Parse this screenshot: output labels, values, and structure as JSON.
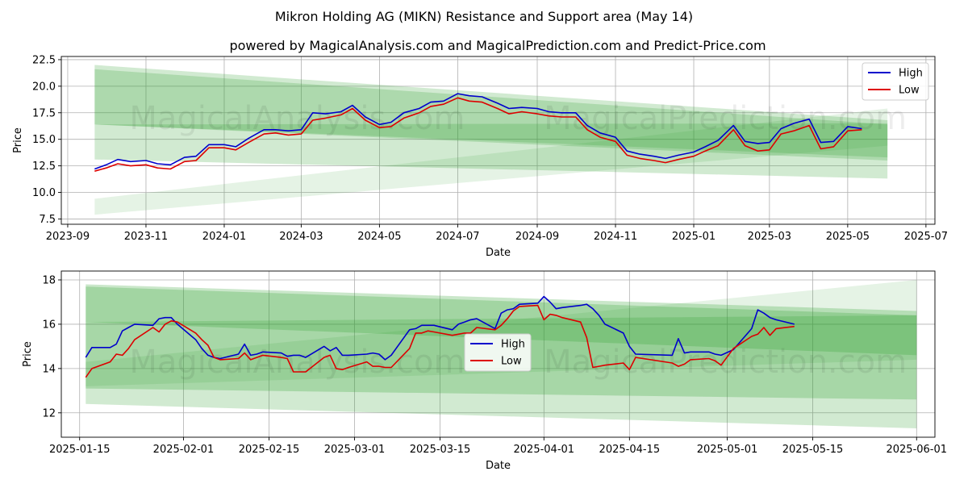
{
  "title": "Mikron Holding AG (MIKN) Resistance and Support area (May 14)",
  "subtitle": "powered by MagicalAnalysis.com and MagicalPrediction.com and Predict-Price.com",
  "watermark": {
    "left": "MagicalAnalysis.com",
    "right": "MagicalPrediction.com"
  },
  "colors": {
    "high": "#0000cc",
    "low": "#dd0000",
    "band": "#2ca02c",
    "grid": "#b0b0b0"
  },
  "chart_data": [
    {
      "type": "line",
      "xlabel": "Date",
      "ylabel": "Price",
      "xlim": [
        "2023-08-27",
        "2025-07-08"
      ],
      "ylim": [
        7.0,
        22.8
      ],
      "grid": true,
      "legend": "top-right",
      "x_ticks": [
        "2023-09",
        "2023-11",
        "2024-01",
        "2024-03",
        "2024-05",
        "2024-07",
        "2024-09",
        "2024-11",
        "2025-01",
        "2025-03",
        "2025-05",
        "2025-07"
      ],
      "y_ticks": [
        7.5,
        10.0,
        12.5,
        15.0,
        17.5,
        20.0,
        22.5
      ],
      "bands": [
        {
          "x": [
            "2023-09-22",
            "2025-06-01"
          ],
          "upper": [
            22.0,
            16.8
          ],
          "lower": [
            16.4,
            13.0
          ],
          "opacity": 0.22
        },
        {
          "x": [
            "2023-09-22",
            "2025-06-01"
          ],
          "upper": [
            21.6,
            16.4
          ],
          "lower": [
            16.4,
            13.3
          ],
          "opacity": 0.22
        },
        {
          "x": [
            "2023-09-22",
            "2025-06-01"
          ],
          "upper": [
            16.4,
            16.5
          ],
          "lower": [
            13.1,
            11.3
          ],
          "opacity": 0.22
        },
        {
          "x": [
            "2023-09-22",
            "2025-06-01"
          ],
          "upper": [
            9.4,
            17.9
          ],
          "lower": [
            7.9,
            14.4
          ],
          "opacity": 0.12
        }
      ],
      "series": [
        {
          "name": "High",
          "x": [
            "2023-09-22",
            "2023-10-01",
            "2023-10-10",
            "2023-10-20",
            "2023-11-01",
            "2023-11-10",
            "2023-11-20",
            "2023-12-01",
            "2023-12-10",
            "2023-12-20",
            "2024-01-01",
            "2024-01-10",
            "2024-01-20",
            "2024-02-01",
            "2024-02-10",
            "2024-02-20",
            "2024-03-01",
            "2024-03-10",
            "2024-03-20",
            "2024-04-01",
            "2024-04-10",
            "2024-04-20",
            "2024-05-01",
            "2024-05-10",
            "2024-05-20",
            "2024-06-01",
            "2024-06-10",
            "2024-06-20",
            "2024-07-01",
            "2024-07-10",
            "2024-07-20",
            "2024-08-01",
            "2024-08-10",
            "2024-08-20",
            "2024-09-01",
            "2024-09-10",
            "2024-09-20",
            "2024-10-01",
            "2024-10-10",
            "2024-10-20",
            "2024-11-01",
            "2024-11-10",
            "2024-11-20",
            "2024-12-01",
            "2024-12-10",
            "2024-12-20",
            "2025-01-01",
            "2025-01-10",
            "2025-01-20",
            "2025-02-01",
            "2025-02-10",
            "2025-02-20",
            "2025-03-01",
            "2025-03-10",
            "2025-03-20",
            "2025-04-01",
            "2025-04-10",
            "2025-04-20",
            "2025-05-01",
            "2025-05-12"
          ],
          "values": [
            12.2,
            12.6,
            13.1,
            12.9,
            13.0,
            12.7,
            12.6,
            13.3,
            13.4,
            14.5,
            14.5,
            14.3,
            15.1,
            15.9,
            15.9,
            15.8,
            15.9,
            17.5,
            17.4,
            17.6,
            18.2,
            17.1,
            16.4,
            16.6,
            17.5,
            17.9,
            18.5,
            18.6,
            19.3,
            19.1,
            19.0,
            18.4,
            17.9,
            18.0,
            17.9,
            17.6,
            17.5,
            17.5,
            16.3,
            15.6,
            15.2,
            13.9,
            13.6,
            13.4,
            13.2,
            13.5,
            13.8,
            14.3,
            14.9,
            16.3,
            14.8,
            14.6,
            14.7,
            16.0,
            16.5,
            16.9,
            14.7,
            14.8,
            16.2,
            16.0
          ]
        },
        {
          "name": "Low",
          "x": [
            "2023-09-22",
            "2023-10-01",
            "2023-10-10",
            "2023-10-20",
            "2023-11-01",
            "2023-11-10",
            "2023-11-20",
            "2023-12-01",
            "2023-12-10",
            "2023-12-20",
            "2024-01-01",
            "2024-01-10",
            "2024-01-20",
            "2024-02-01",
            "2024-02-10",
            "2024-02-20",
            "2024-03-01",
            "2024-03-10",
            "2024-03-20",
            "2024-04-01",
            "2024-04-10",
            "2024-04-20",
            "2024-05-01",
            "2024-05-10",
            "2024-05-20",
            "2024-06-01",
            "2024-06-10",
            "2024-06-20",
            "2024-07-01",
            "2024-07-10",
            "2024-07-20",
            "2024-08-01",
            "2024-08-10",
            "2024-08-20",
            "2024-09-01",
            "2024-09-10",
            "2024-09-20",
            "2024-10-01",
            "2024-10-10",
            "2024-10-20",
            "2024-11-01",
            "2024-11-10",
            "2024-11-20",
            "2024-12-01",
            "2024-12-10",
            "2024-12-20",
            "2025-01-01",
            "2025-01-10",
            "2025-01-20",
            "2025-02-01",
            "2025-02-10",
            "2025-02-20",
            "2025-03-01",
            "2025-03-10",
            "2025-03-20",
            "2025-04-01",
            "2025-04-10",
            "2025-04-20",
            "2025-05-01",
            "2025-05-12"
          ],
          "values": [
            12.0,
            12.3,
            12.7,
            12.5,
            12.6,
            12.3,
            12.2,
            12.9,
            13.0,
            14.2,
            14.2,
            14.0,
            14.7,
            15.5,
            15.6,
            15.4,
            15.5,
            16.8,
            17.0,
            17.3,
            17.9,
            16.8,
            16.1,
            16.2,
            17.0,
            17.5,
            18.1,
            18.3,
            18.9,
            18.6,
            18.5,
            17.9,
            17.4,
            17.6,
            17.4,
            17.2,
            17.1,
            17.1,
            15.9,
            15.2,
            14.8,
            13.5,
            13.2,
            13.0,
            12.8,
            13.1,
            13.4,
            13.9,
            14.4,
            15.9,
            14.4,
            13.9,
            14.0,
            15.5,
            15.8,
            16.3,
            14.1,
            14.3,
            15.8,
            15.9
          ]
        }
      ]
    },
    {
      "type": "line",
      "xlabel": "Date",
      "ylabel": "Price",
      "xlim": [
        "2025-01-12",
        "2025-06-04"
      ],
      "ylim": [
        10.9,
        18.4
      ],
      "grid": true,
      "legend": "center",
      "x_ticks": [
        "2025-01-15",
        "2025-02-01",
        "2025-02-15",
        "2025-03-01",
        "2025-03-15",
        "2025-04-01",
        "2025-04-15",
        "2025-05-01",
        "2025-05-15",
        "2025-06-01"
      ],
      "y_ticks": [
        12,
        14,
        16,
        18
      ],
      "bands": [
        {
          "x": [
            "2025-01-16",
            "2025-06-01"
          ],
          "upper": [
            17.8,
            16.6
          ],
          "lower": [
            16.1,
            14.6
          ],
          "opacity": 0.25
        },
        {
          "x": [
            "2025-01-16",
            "2025-06-01"
          ],
          "upper": [
            17.7,
            16.4
          ],
          "lower": [
            13.1,
            12.6
          ],
          "opacity": 0.25
        },
        {
          "x": [
            "2025-01-16",
            "2025-06-01"
          ],
          "upper": [
            16.1,
            16.4
          ],
          "lower": [
            12.4,
            11.3
          ],
          "opacity": 0.22
        },
        {
          "x": [
            "2025-01-16",
            "2025-06-01"
          ],
          "upper": [
            14.3,
            18.0
          ],
          "lower": [
            13.2,
            14.4
          ],
          "opacity": 0.12
        }
      ],
      "series": [
        {
          "name": "High",
          "x": [
            "2025-01-16",
            "2025-01-17",
            "2025-01-20",
            "2025-01-21",
            "2025-01-22",
            "2025-01-23",
            "2025-01-24",
            "2025-01-27",
            "2025-01-28",
            "2025-01-29",
            "2025-01-30",
            "2025-01-31",
            "2025-02-03",
            "2025-02-04",
            "2025-02-05",
            "2025-02-06",
            "2025-02-07",
            "2025-02-10",
            "2025-02-11",
            "2025-02-12",
            "2025-02-13",
            "2025-02-14",
            "2025-02-17",
            "2025-02-18",
            "2025-02-19",
            "2025-02-20",
            "2025-02-21",
            "2025-02-24",
            "2025-02-25",
            "2025-02-26",
            "2025-02-27",
            "2025-02-28",
            "2025-03-03",
            "2025-03-04",
            "2025-03-05",
            "2025-03-06",
            "2025-03-07",
            "2025-03-10",
            "2025-03-11",
            "2025-03-12",
            "2025-03-13",
            "2025-03-14",
            "2025-03-17",
            "2025-03-18",
            "2025-03-19",
            "2025-03-20",
            "2025-03-21",
            "2025-03-24",
            "2025-03-25",
            "2025-03-26",
            "2025-03-27",
            "2025-03-28",
            "2025-03-31",
            "2025-04-01",
            "2025-04-02",
            "2025-04-03",
            "2025-04-04",
            "2025-04-07",
            "2025-04-08",
            "2025-04-09",
            "2025-04-10",
            "2025-04-11",
            "2025-04-14",
            "2025-04-15",
            "2025-04-16",
            "2025-04-22",
            "2025-04-23",
            "2025-04-24",
            "2025-04-25",
            "2025-04-28",
            "2025-04-29",
            "2025-04-30",
            "2025-05-02",
            "2025-05-05",
            "2025-05-06",
            "2025-05-07",
            "2025-05-08",
            "2025-05-09",
            "2025-05-12"
          ],
          "values": [
            14.5,
            14.95,
            14.95,
            15.1,
            15.7,
            15.85,
            16.0,
            15.95,
            16.25,
            16.3,
            16.3,
            16.0,
            15.3,
            14.9,
            14.6,
            14.5,
            14.45,
            14.65,
            15.1,
            14.6,
            14.65,
            14.75,
            14.7,
            14.55,
            14.6,
            14.6,
            14.5,
            15.0,
            14.8,
            14.95,
            14.6,
            14.6,
            14.65,
            14.7,
            14.65,
            14.4,
            14.6,
            15.75,
            15.8,
            15.95,
            15.95,
            15.95,
            15.75,
            16.0,
            16.1,
            16.2,
            16.25,
            15.8,
            16.5,
            16.65,
            16.7,
            16.9,
            16.95,
            17.25,
            17.0,
            16.7,
            16.75,
            16.85,
            16.9,
            16.7,
            16.4,
            16.0,
            15.6,
            15.0,
            14.65,
            14.6,
            15.35,
            14.7,
            14.75,
            14.75,
            14.65,
            14.6,
            14.85,
            15.8,
            16.65,
            16.5,
            16.3,
            16.2,
            16.0
          ]
        },
        {
          "name": "Low",
          "x": [
            "2025-01-16",
            "2025-01-17",
            "2025-01-20",
            "2025-01-21",
            "2025-01-22",
            "2025-01-23",
            "2025-01-24",
            "2025-01-27",
            "2025-01-28",
            "2025-01-29",
            "2025-01-30",
            "2025-01-31",
            "2025-02-03",
            "2025-02-04",
            "2025-02-05",
            "2025-02-06",
            "2025-02-07",
            "2025-02-10",
            "2025-02-11",
            "2025-02-12",
            "2025-02-13",
            "2025-02-14",
            "2025-02-17",
            "2025-02-18",
            "2025-02-19",
            "2025-02-20",
            "2025-02-21",
            "2025-02-24",
            "2025-02-25",
            "2025-02-26",
            "2025-02-27",
            "2025-02-28",
            "2025-03-03",
            "2025-03-04",
            "2025-03-05",
            "2025-03-06",
            "2025-03-07",
            "2025-03-10",
            "2025-03-11",
            "2025-03-12",
            "2025-03-13",
            "2025-03-14",
            "2025-03-17",
            "2025-03-18",
            "2025-03-19",
            "2025-03-20",
            "2025-03-21",
            "2025-03-24",
            "2025-03-25",
            "2025-03-26",
            "2025-03-27",
            "2025-03-28",
            "2025-03-31",
            "2025-04-01",
            "2025-04-02",
            "2025-04-03",
            "2025-04-04",
            "2025-04-07",
            "2025-04-08",
            "2025-04-09",
            "2025-04-10",
            "2025-04-11",
            "2025-04-14",
            "2025-04-15",
            "2025-04-16",
            "2025-04-22",
            "2025-04-23",
            "2025-04-24",
            "2025-04-25",
            "2025-04-28",
            "2025-04-29",
            "2025-04-30",
            "2025-05-02",
            "2025-05-05",
            "2025-05-06",
            "2025-05-07",
            "2025-05-08",
            "2025-05-09",
            "2025-05-12"
          ],
          "values": [
            13.6,
            14.0,
            14.3,
            14.65,
            14.6,
            14.9,
            15.3,
            15.85,
            15.65,
            16.0,
            16.15,
            16.1,
            15.6,
            15.3,
            15.05,
            14.5,
            14.4,
            14.45,
            14.7,
            14.4,
            14.5,
            14.6,
            14.5,
            14.45,
            13.85,
            13.85,
            13.85,
            14.5,
            14.6,
            14.0,
            13.95,
            14.05,
            14.3,
            14.1,
            14.1,
            14.05,
            14.05,
            14.9,
            15.6,
            15.6,
            15.7,
            15.65,
            15.5,
            15.55,
            15.6,
            15.6,
            15.85,
            15.75,
            15.95,
            16.25,
            16.6,
            16.8,
            16.85,
            16.2,
            16.45,
            16.4,
            16.3,
            16.1,
            15.4,
            14.05,
            14.1,
            14.15,
            14.25,
            13.95,
            14.5,
            14.25,
            14.1,
            14.2,
            14.4,
            14.45,
            14.35,
            14.15,
            14.9,
            15.45,
            15.55,
            15.85,
            15.5,
            15.8,
            15.9
          ]
        }
      ]
    }
  ]
}
